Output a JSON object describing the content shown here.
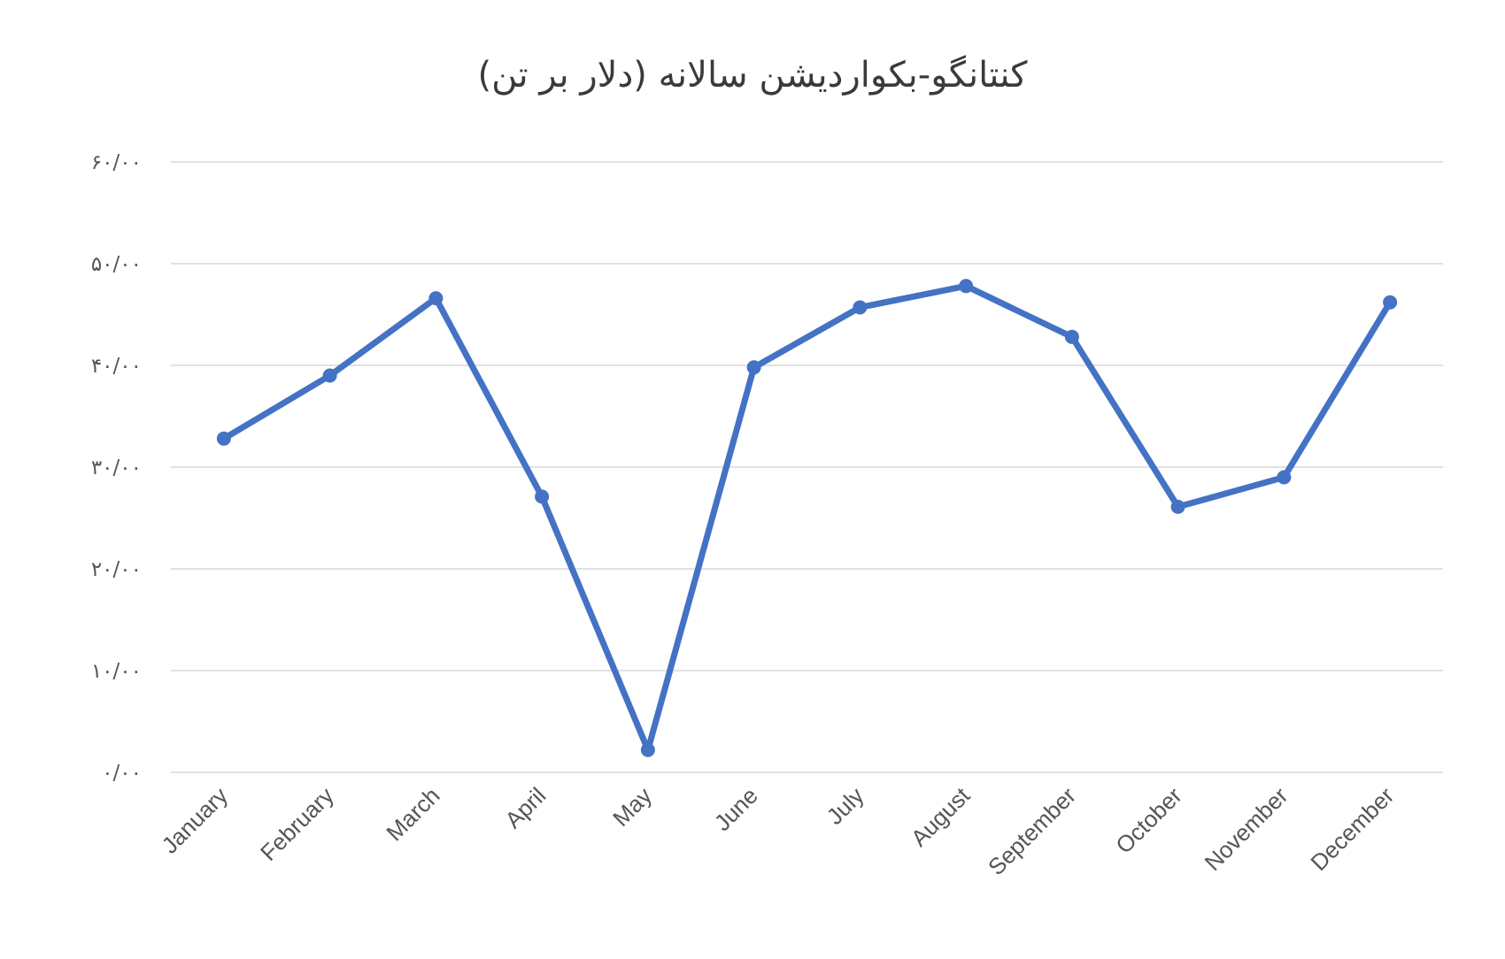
{
  "chart_data": {
    "type": "line",
    "title": "کنتانگو-بکواردیشن سالانه (دلار بر تن)",
    "xlabel": "",
    "ylabel": "",
    "categories": [
      "January",
      "February",
      "March",
      "April",
      "May",
      "June",
      "July",
      "August",
      "September",
      "October",
      "November",
      "December"
    ],
    "series": [
      {
        "values": [
          32.8,
          39.0,
          46.6,
          27.1,
          2.2,
          39.8,
          45.7,
          47.8,
          42.8,
          26.1,
          29.0,
          46.2
        ]
      }
    ],
    "ylim": [
      0,
      60
    ],
    "y_ticks": [
      {
        "value": 0,
        "label": "۰/۰۰"
      },
      {
        "value": 10,
        "label": "۱۰/۰۰"
      },
      {
        "value": 20,
        "label": "۲۰/۰۰"
      },
      {
        "value": 30,
        "label": "۳۰/۰۰"
      },
      {
        "value": 40,
        "label": "۴۰/۰۰"
      },
      {
        "value": 50,
        "label": "۵۰/۰۰"
      },
      {
        "value": 60,
        "label": "۶۰/۰۰"
      }
    ],
    "grid": true,
    "legend": "none",
    "colors": {
      "line": "#4472C4",
      "grid": "#d9d9d9",
      "text": "#555555"
    }
  }
}
